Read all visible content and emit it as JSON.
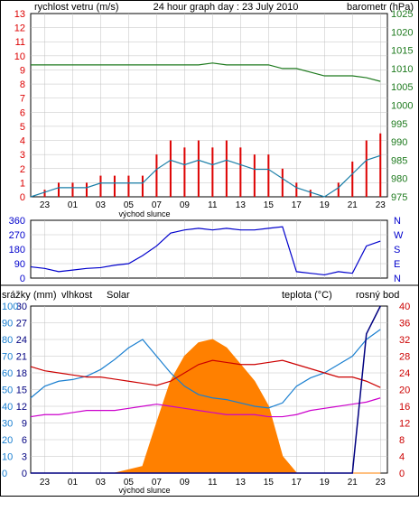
{
  "colors": {
    "wind": "#dd0000",
    "gust": "#1a7fa8",
    "pressure": "#1e7a1e",
    "direction": "#0000cc",
    "rain": "#000080",
    "humidity": "#1a7fd0",
    "solar": "#ff8000",
    "temperature": "#cc0000",
    "dewpoint": "#cc00cc",
    "frame": "#000000",
    "grid": "#c0c0c0"
  },
  "top": {
    "title": "24 hour graph day : 23 July 2010",
    "left_label": "rychlost vetru (m/s)",
    "right_label": "barometr (hPa)",
    "left_ticks": [
      "0",
      "1",
      "2",
      "3",
      "4",
      "5",
      "6",
      "7",
      "8",
      "9",
      "10",
      "11",
      "12",
      "13"
    ],
    "right_ticks": [
      "975",
      "980",
      "985",
      "990",
      "995",
      "1000",
      "1005",
      "1010",
      "1015",
      "1020",
      "1025"
    ],
    "x_ticks": [
      "23",
      "01",
      "03",
      "05",
      "07",
      "09",
      "11",
      "13",
      "15",
      "17",
      "19",
      "21",
      "23"
    ],
    "sunrise_label": "východ slunce"
  },
  "middle": {
    "left_ticks": [
      "0",
      "90",
      "180",
      "270",
      "360"
    ],
    "right_ticks": [
      "N",
      "E",
      "S",
      "W",
      "N"
    ]
  },
  "bottom": {
    "header_rain": "srážky (mm)",
    "header_humidity": "vlhkost",
    "header_solar": "Solar",
    "header_temp": "teplota (°C)",
    "header_dew": "rosný bod",
    "rain_ticks": [
      "0",
      "3",
      "6",
      "9",
      "12",
      "15",
      "18",
      "21",
      "24",
      "27",
      "30"
    ],
    "hum_ticks": [
      "0",
      "10",
      "20",
      "30",
      "40",
      "50",
      "60",
      "70",
      "80",
      "90",
      "100"
    ],
    "temp_ticks": [
      "0",
      "4",
      "8",
      "12",
      "16",
      "20",
      "24",
      "28",
      "32",
      "36",
      "40"
    ],
    "x_ticks": [
      "23",
      "01",
      "03",
      "05",
      "07",
      "09",
      "11",
      "13",
      "15",
      "17",
      "19",
      "21",
      "23"
    ],
    "sunrise_label": "východ slunce"
  },
  "chart_data": [
    {
      "type": "line",
      "title": "24 hour graph day : 23 July 2010",
      "x_unit": "hour",
      "x": [
        22,
        23,
        24,
        25,
        26,
        27,
        28,
        29,
        30,
        31,
        32,
        33,
        34,
        35,
        36,
        37,
        38,
        39,
        40,
        41,
        42,
        43,
        44,
        45,
        46,
        47
      ],
      "xlabel": "",
      "ylabel": "rychlost vetru (m/s)",
      "ylim": [
        0,
        13
      ],
      "y2label": "barometr (hPa)",
      "y2lim": [
        975,
        1025
      ],
      "series": [
        {
          "name": "rychlost vetru (m/s)",
          "axis": "left",
          "values": [
            0,
            0.5,
            1,
            1,
            1,
            1.5,
            1.5,
            1.5,
            1.5,
            3,
            4,
            3.5,
            4,
            3.5,
            4,
            3.5,
            3,
            3,
            2,
            1,
            0.5,
            0,
            1,
            2.5,
            4,
            4.5
          ]
        },
        {
          "name": "barometr (hPa)",
          "axis": "right",
          "values": [
            1011,
            1011,
            1011,
            1011,
            1011,
            1011,
            1011,
            1011,
            1011,
            1011,
            1011,
            1011,
            1011,
            1011.5,
            1011,
            1011,
            1011,
            1011,
            1010,
            1010,
            1009,
            1008,
            1008,
            1008,
            1007.5,
            1006.5
          ]
        }
      ]
    },
    {
      "type": "scatter",
      "ylabel": "",
      "ylim": [
        0,
        360
      ],
      "x_unit": "hour",
      "x": [
        22,
        23,
        24,
        25,
        26,
        27,
        28,
        29,
        30,
        31,
        32,
        33,
        34,
        35,
        36,
        37,
        38,
        39,
        40,
        41,
        42,
        43,
        44,
        45,
        46,
        47
      ],
      "series": [
        {
          "name": "",
          "values": [
            70,
            60,
            40,
            50,
            60,
            65,
            80,
            90,
            140,
            200,
            280,
            300,
            310,
            300,
            310,
            300,
            300,
            310,
            320,
            40,
            30,
            20,
            40,
            30,
            200,
            230
          ]
        }
      ]
    },
    {
      "type": "line",
      "x_unit": "hour",
      "x": [
        22,
        23,
        24,
        25,
        26,
        27,
        28,
        29,
        30,
        31,
        32,
        33,
        34,
        35,
        36,
        37,
        38,
        39,
        40,
        41,
        42,
        43,
        44,
        45,
        46,
        47
      ],
      "series": [
        {
          "name": "vlhkost",
          "axis": "humidity",
          "ylim": [
            0,
            100
          ],
          "values": [
            45,
            52,
            55,
            56,
            58,
            62,
            68,
            75,
            80,
            70,
            60,
            52,
            47,
            45,
            44,
            42,
            40,
            39,
            42,
            52,
            57,
            60,
            65,
            70,
            80,
            86
          ]
        },
        {
          "name": "Solar",
          "axis": "humidity",
          "ylim": [
            0,
            100
          ],
          "values": [
            0,
            0,
            0,
            0,
            0,
            0,
            0,
            2,
            4,
            30,
            55,
            70,
            78,
            80,
            75,
            65,
            55,
            40,
            10,
            0,
            0,
            0,
            0,
            0,
            0,
            0
          ]
        },
        {
          "name": "teplota (°C)",
          "axis": "temperature",
          "ylim": [
            0,
            40
          ],
          "values": [
            25.5,
            24.5,
            24,
            23.5,
            23,
            23,
            22.5,
            22,
            21.5,
            21,
            22,
            24,
            26,
            27,
            26.5,
            26,
            26,
            26.5,
            27,
            26,
            25,
            24,
            23,
            23,
            22,
            20.5
          ]
        },
        {
          "name": "rosný bod",
          "axis": "temperature",
          "ylim": [
            0,
            40
          ],
          "values": [
            13.5,
            14,
            14,
            14.5,
            15,
            15,
            15,
            15.5,
            16,
            16.5,
            16,
            15.5,
            15,
            14.5,
            14,
            14,
            14,
            13.5,
            13.5,
            14,
            15,
            15.5,
            16,
            16.5,
            17,
            18
          ]
        },
        {
          "name": "srážky (mm)",
          "axis": "rain",
          "ylim": [
            0,
            30
          ],
          "values": [
            0,
            0,
            0,
            0,
            0,
            0,
            0,
            0,
            0,
            0,
            0,
            0,
            0,
            0,
            0,
            0,
            0,
            0,
            0,
            0,
            0,
            0,
            0,
            0,
            25,
            30
          ]
        }
      ]
    }
  ]
}
